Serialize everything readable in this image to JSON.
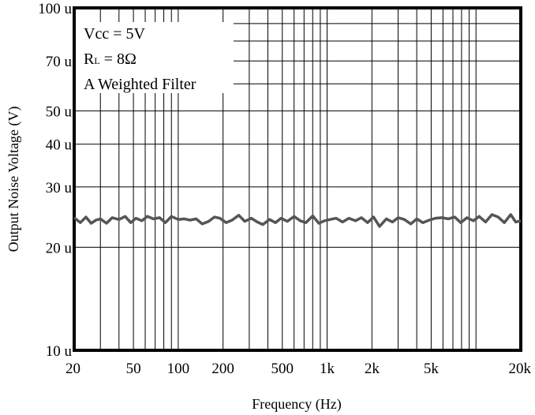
{
  "chart_data": {
    "type": "line",
    "title": "",
    "xlabel": "Frequency (Hz)",
    "ylabel": "Output Noise Voltage (V)",
    "x_scale": "log",
    "y_scale": "log",
    "xlim": [
      20,
      20000
    ],
    "ylim": [
      1e-05,
      0.0001
    ],
    "grid": true,
    "x_ticks": [
      {
        "value": 20,
        "label": "20"
      },
      {
        "value": 50,
        "label": "50"
      },
      {
        "value": 100,
        "label": "100"
      },
      {
        "value": 200,
        "label": "200"
      },
      {
        "value": 500,
        "label": "500"
      },
      {
        "value": 1000,
        "label": "1k"
      },
      {
        "value": 2000,
        "label": "2k"
      },
      {
        "value": 5000,
        "label": "5k"
      },
      {
        "value": 20000,
        "label": "20k"
      }
    ],
    "y_ticks": [
      {
        "value": 1e-05,
        "label": "10 u"
      },
      {
        "value": 2e-05,
        "label": "20 u"
      },
      {
        "value": 3e-05,
        "label": "30 u"
      },
      {
        "value": 4e-05,
        "label": "40 u"
      },
      {
        "value": 5e-05,
        "label": "50 u"
      },
      {
        "value": 7e-05,
        "label": "70 u"
      },
      {
        "value": 0.0001,
        "label": "100 u"
      }
    ],
    "annotations": {
      "vcc": "Vcc = 5V",
      "rl_main": "R",
      "rl_sub": "L",
      "rl_value": " = 8Ω",
      "filter": "A Weighted Filter"
    },
    "series": [
      {
        "color": "#555555",
        "x": [
          20,
          22,
          24,
          26,
          28,
          30,
          33,
          36,
          40,
          44,
          48,
          52,
          57,
          62,
          68,
          75,
          82,
          90,
          100,
          110,
          120,
          132,
          145,
          160,
          175,
          190,
          210,
          230,
          255,
          280,
          310,
          340,
          370,
          410,
          450,
          490,
          540,
          600,
          660,
          720,
          800,
          880,
          960,
          1050,
          1150,
          1270,
          1400,
          1550,
          1700,
          1870,
          2050,
          2250,
          2500,
          2750,
          3000,
          3300,
          3650,
          4000,
          4400,
          4850,
          5350,
          5900,
          6500,
          7200,
          7900,
          8700,
          9600,
          10500,
          11600,
          12800,
          14100,
          15500,
          17100,
          18500,
          20000
        ],
        "y": [
          2.44e-05,
          2.36e-05,
          2.45e-05,
          2.35e-05,
          2.4e-05,
          2.42e-05,
          2.35e-05,
          2.44e-05,
          2.41e-05,
          2.46e-05,
          2.36e-05,
          2.43e-05,
          2.39e-05,
          2.46e-05,
          2.42e-05,
          2.44e-05,
          2.36e-05,
          2.46e-05,
          2.41e-05,
          2.42e-05,
          2.4e-05,
          2.42e-05,
          2.34e-05,
          2.38e-05,
          2.45e-05,
          2.43e-05,
          2.36e-05,
          2.4e-05,
          2.48e-05,
          2.38e-05,
          2.43e-05,
          2.37e-05,
          2.33e-05,
          2.41e-05,
          2.36e-05,
          2.43e-05,
          2.38e-05,
          2.46e-05,
          2.39e-05,
          2.36e-05,
          2.47e-05,
          2.35e-05,
          2.39e-05,
          2.41e-05,
          2.43e-05,
          2.37e-05,
          2.43e-05,
          2.39e-05,
          2.44e-05,
          2.36e-05,
          2.45e-05,
          2.3e-05,
          2.42e-05,
          2.37e-05,
          2.44e-05,
          2.41e-05,
          2.34e-05,
          2.42e-05,
          2.36e-05,
          2.4e-05,
          2.43e-05,
          2.44e-05,
          2.42e-05,
          2.45e-05,
          2.36e-05,
          2.44e-05,
          2.39e-05,
          2.46e-05,
          2.37e-05,
          2.49e-05,
          2.45e-05,
          2.36e-05,
          2.49e-05,
          2.37e-05,
          2.39e-05
        ]
      }
    ]
  }
}
